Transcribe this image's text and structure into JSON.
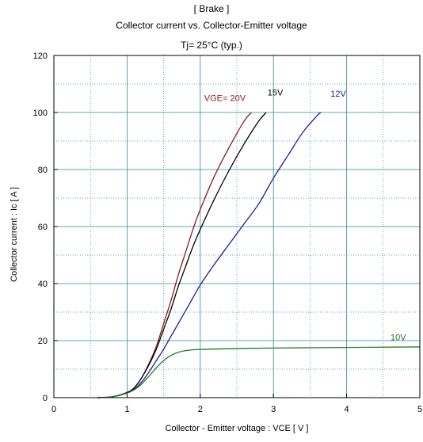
{
  "chart_data": {
    "type": "line",
    "title": "[ Brake ]",
    "subtitle": "Collector current  vs.  Collector-Emitter voltage",
    "condition": "Tj= 25°C  (typ.)",
    "xlabel": "Collector - Emitter voltage  :  VCE  [ V ]",
    "ylabel": "Collector current  :  Ic  [ A ]",
    "xlim": [
      0,
      5
    ],
    "ylim": [
      0,
      120
    ],
    "x_ticks": [
      0,
      1,
      2,
      3,
      4,
      5
    ],
    "y_ticks": [
      0,
      20,
      40,
      60,
      80,
      100,
      120
    ],
    "grid": true,
    "series": [
      {
        "name": "VGE= 20V",
        "color": "#8b1a1a",
        "points": [
          [
            0.6,
            0
          ],
          [
            0.8,
            0.3
          ],
          [
            1.0,
            1.8
          ],
          [
            1.1,
            3.5
          ],
          [
            1.2,
            7
          ],
          [
            1.3,
            12
          ],
          [
            1.4,
            18
          ],
          [
            1.5,
            26
          ],
          [
            1.6,
            34
          ],
          [
            1.7,
            43
          ],
          [
            1.8,
            51
          ],
          [
            1.9,
            59
          ],
          [
            2.0,
            66
          ],
          [
            2.2,
            78
          ],
          [
            2.4,
            88
          ],
          [
            2.6,
            97
          ],
          [
            2.7,
            100
          ]
        ]
      },
      {
        "name": "15V",
        "color": "#000000",
        "points": [
          [
            0.6,
            0
          ],
          [
            0.8,
            0.3
          ],
          [
            1.0,
            1.8
          ],
          [
            1.1,
            3.5
          ],
          [
            1.2,
            7
          ],
          [
            1.3,
            11.5
          ],
          [
            1.4,
            17
          ],
          [
            1.5,
            24
          ],
          [
            1.6,
            31
          ],
          [
            1.7,
            39
          ],
          [
            1.8,
            46
          ],
          [
            1.9,
            53
          ],
          [
            2.0,
            59
          ],
          [
            2.2,
            70
          ],
          [
            2.4,
            80
          ],
          [
            2.6,
            89
          ],
          [
            2.8,
            97
          ],
          [
            2.9,
            100
          ]
        ]
      },
      {
        "name": "12V",
        "color": "#1c1c9c",
        "points": [
          [
            0.6,
            0
          ],
          [
            0.8,
            0.3
          ],
          [
            1.0,
            1.6
          ],
          [
            1.1,
            3
          ],
          [
            1.2,
            5.5
          ],
          [
            1.3,
            9
          ],
          [
            1.4,
            13
          ],
          [
            1.5,
            17
          ],
          [
            1.6,
            21.5
          ],
          [
            1.7,
            26
          ],
          [
            1.8,
            30.5
          ],
          [
            1.9,
            35
          ],
          [
            2.0,
            39.5
          ],
          [
            2.2,
            47
          ],
          [
            2.4,
            54
          ],
          [
            2.6,
            61
          ],
          [
            2.8,
            68
          ],
          [
            3.0,
            77
          ],
          [
            3.2,
            85
          ],
          [
            3.4,
            93
          ],
          [
            3.6,
            99
          ],
          [
            3.65,
            100
          ]
        ]
      },
      {
        "name": "10V",
        "color": "#1e7d1e",
        "points": [
          [
            0.6,
            0
          ],
          [
            0.8,
            0.3
          ],
          [
            1.0,
            1.6
          ],
          [
            1.1,
            2.8
          ],
          [
            1.2,
            4.8
          ],
          [
            1.3,
            7.5
          ],
          [
            1.4,
            10.5
          ],
          [
            1.5,
            13
          ],
          [
            1.6,
            14.8
          ],
          [
            1.7,
            15.9
          ],
          [
            1.8,
            16.5
          ],
          [
            2.0,
            16.9
          ],
          [
            2.5,
            17.2
          ],
          [
            3.0,
            17.4
          ],
          [
            4.0,
            17.6
          ],
          [
            5.0,
            17.8
          ]
        ]
      }
    ],
    "series_labels": [
      {
        "text": "VGE= 20V",
        "x": 2.62,
        "y": 104,
        "anchor": "end",
        "color": "#8b1a1a"
      },
      {
        "text": "15V",
        "x": 2.92,
        "y": 106,
        "anchor": "start",
        "color": "#000000"
      },
      {
        "text": "12V",
        "x": 3.78,
        "y": 105.5,
        "anchor": "start",
        "color": "#1c1c9c"
      },
      {
        "text": "10V",
        "x": 4.6,
        "y": 20.2,
        "anchor": "start",
        "color": "#1e7d1e"
      }
    ]
  }
}
